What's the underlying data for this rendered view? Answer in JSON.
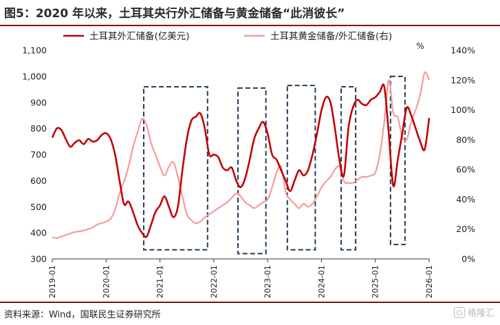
{
  "title": "图5：2020 年以来，土耳其央行外汇储备与黄金储备“此消彼长”",
  "source": "资料来源：Wind，国联民生证券研究所",
  "watermark": "格隆汇",
  "colors": {
    "fx_series": "#c00000",
    "gold_series": "#f59a9a",
    "box": "#1f3b57",
    "rule": "#7b1416"
  },
  "chart_data": {
    "type": "line",
    "legend": [
      "土耳其外汇储备(亿美元)",
      "土耳其黄金储备/外汇储备(右)"
    ],
    "legend_position": "top",
    "y_left": {
      "min": 300,
      "max": 1100,
      "step": 100,
      "ticks": [
        "300",
        "400",
        "500",
        "600",
        "700",
        "800",
        "900",
        "1,000",
        "1,100"
      ]
    },
    "y_right": {
      "unit": "%",
      "min": 0,
      "max": 140,
      "step": 20,
      "ticks": [
        "0%",
        "20%",
        "40%",
        "60%",
        "80%",
        "100%",
        "120%",
        "140%"
      ]
    },
    "x_ticks": [
      "2019-01",
      "2020-01",
      "2021-01",
      "2022-01",
      "2023-01",
      "2024-01",
      "2025-01",
      "2026-01"
    ],
    "x_start": "2019-01",
    "series": [
      {
        "name": "土耳其外汇储备(亿美元)",
        "axis": "left",
        "points": [
          [
            "2019-01",
            765
          ],
          [
            "2019-02",
            800
          ],
          [
            "2019-03",
            795
          ],
          [
            "2019-04",
            760
          ],
          [
            "2019-05",
            730
          ],
          [
            "2019-06",
            745
          ],
          [
            "2019-07",
            755
          ],
          [
            "2019-08",
            740
          ],
          [
            "2019-09",
            760
          ],
          [
            "2019-10",
            750
          ],
          [
            "2019-11",
            755
          ],
          [
            "2019-12",
            775
          ],
          [
            "2020-01",
            782
          ],
          [
            "2020-02",
            760
          ],
          [
            "2020-03",
            700
          ],
          [
            "2020-04",
            600
          ],
          [
            "2020-05",
            510
          ],
          [
            "2020-06",
            520
          ],
          [
            "2020-07",
            480
          ],
          [
            "2020-08",
            430
          ],
          [
            "2020-09",
            400
          ],
          [
            "2020-10",
            385
          ],
          [
            "2020-11",
            430
          ],
          [
            "2020-12",
            480
          ],
          [
            "2021-01",
            505
          ],
          [
            "2021-02",
            540
          ],
          [
            "2021-03",
            500
          ],
          [
            "2021-04",
            460
          ],
          [
            "2021-05",
            500
          ],
          [
            "2021-06",
            640
          ],
          [
            "2021-07",
            760
          ],
          [
            "2021-08",
            830
          ],
          [
            "2021-09",
            845
          ],
          [
            "2021-10",
            858
          ],
          [
            "2021-11",
            800
          ],
          [
            "2021-12",
            700
          ],
          [
            "2022-01",
            700
          ],
          [
            "2022-02",
            690
          ],
          [
            "2022-03",
            650
          ],
          [
            "2022-04",
            640
          ],
          [
            "2022-05",
            650
          ],
          [
            "2022-06",
            600
          ],
          [
            "2022-07",
            575
          ],
          [
            "2022-08",
            610
          ],
          [
            "2022-09",
            680
          ],
          [
            "2022-10",
            760
          ],
          [
            "2022-11",
            800
          ],
          [
            "2022-12",
            825
          ],
          [
            "2023-01",
            780
          ],
          [
            "2023-02",
            700
          ],
          [
            "2023-03",
            680
          ],
          [
            "2023-04",
            640
          ],
          [
            "2023-05",
            600
          ],
          [
            "2023-06",
            560
          ],
          [
            "2023-07",
            600
          ],
          [
            "2023-08",
            640
          ],
          [
            "2023-09",
            620
          ],
          [
            "2023-10",
            640
          ],
          [
            "2023-11",
            700
          ],
          [
            "2023-12",
            780
          ],
          [
            "2024-01",
            870
          ],
          [
            "2024-02",
            920
          ],
          [
            "2024-03",
            900
          ],
          [
            "2024-04",
            800
          ],
          [
            "2024-05",
            680
          ],
          [
            "2024-06",
            620
          ],
          [
            "2024-07",
            800
          ],
          [
            "2024-08",
            880
          ],
          [
            "2024-09",
            910
          ],
          [
            "2024-10",
            895
          ],
          [
            "2024-11",
            890
          ],
          [
            "2024-12",
            910
          ],
          [
            "2025-01",
            920
          ],
          [
            "2025-02",
            940
          ],
          [
            "2025-03",
            960
          ],
          [
            "2025-04",
            780
          ],
          [
            "2025-05",
            580
          ],
          [
            "2025-06",
            680
          ],
          [
            "2025-07",
            780
          ],
          [
            "2025-08",
            880
          ],
          [
            "2025-09",
            850
          ],
          [
            "2025-10",
            800
          ],
          [
            "2025-11",
            750
          ],
          [
            "2025-12",
            720
          ],
          [
            "2026-01",
            840
          ]
        ]
      },
      {
        "name": "土耳其黄金储备/外汇储备(右)",
        "axis": "right",
        "points": [
          [
            "2019-01",
            14.5
          ],
          [
            "2019-02",
            14
          ],
          [
            "2019-03",
            15
          ],
          [
            "2019-04",
            16
          ],
          [
            "2019-05",
            17
          ],
          [
            "2019-06",
            18
          ],
          [
            "2019-07",
            18.5
          ],
          [
            "2019-08",
            19
          ],
          [
            "2019-09",
            20
          ],
          [
            "2019-10",
            21
          ],
          [
            "2019-11",
            23
          ],
          [
            "2019-12",
            24
          ],
          [
            "2020-01",
            25
          ],
          [
            "2020-02",
            27
          ],
          [
            "2020-03",
            33
          ],
          [
            "2020-04",
            44
          ],
          [
            "2020-05",
            52
          ],
          [
            "2020-06",
            62
          ],
          [
            "2020-07",
            75
          ],
          [
            "2020-08",
            85
          ],
          [
            "2020-09",
            94
          ],
          [
            "2020-10",
            90
          ],
          [
            "2020-11",
            78
          ],
          [
            "2020-12",
            70
          ],
          [
            "2021-01",
            62
          ],
          [
            "2021-02",
            56
          ],
          [
            "2021-03",
            62
          ],
          [
            "2021-04",
            65
          ],
          [
            "2021-05",
            55
          ],
          [
            "2021-06",
            42
          ],
          [
            "2021-07",
            30
          ],
          [
            "2021-08",
            26
          ],
          [
            "2021-09",
            24
          ],
          [
            "2021-10",
            25
          ],
          [
            "2021-11",
            28
          ],
          [
            "2021-12",
            30
          ],
          [
            "2022-01",
            32
          ],
          [
            "2022-02",
            34
          ],
          [
            "2022-03",
            36
          ],
          [
            "2022-04",
            38
          ],
          [
            "2022-05",
            41
          ],
          [
            "2022-06",
            44
          ],
          [
            "2022-07",
            42
          ],
          [
            "2022-08",
            38
          ],
          [
            "2022-09",
            36
          ],
          [
            "2022-10",
            34
          ],
          [
            "2022-11",
            36
          ],
          [
            "2022-12",
            38
          ],
          [
            "2023-01",
            40
          ],
          [
            "2023-02",
            48
          ],
          [
            "2023-03",
            58
          ],
          [
            "2023-04",
            62
          ],
          [
            "2023-05",
            45
          ],
          [
            "2023-06",
            40
          ],
          [
            "2023-07",
            37
          ],
          [
            "2023-08",
            34
          ],
          [
            "2023-09",
            37
          ],
          [
            "2023-10",
            35
          ],
          [
            "2023-11",
            37
          ],
          [
            "2023-12",
            42
          ],
          [
            "2024-01",
            48
          ],
          [
            "2024-02",
            52
          ],
          [
            "2024-03",
            55
          ],
          [
            "2024-04",
            60
          ],
          [
            "2024-05",
            62
          ],
          [
            "2024-06",
            52
          ],
          [
            "2024-07",
            51
          ],
          [
            "2024-08",
            51
          ],
          [
            "2024-09",
            53
          ],
          [
            "2024-10",
            55
          ],
          [
            "2024-11",
            55
          ],
          [
            "2024-12",
            56
          ],
          [
            "2025-01",
            58
          ],
          [
            "2025-02",
            70
          ],
          [
            "2025-03",
            92
          ],
          [
            "2025-04",
            120
          ],
          [
            "2025-05",
            98
          ],
          [
            "2025-06",
            95
          ],
          [
            "2025-07",
            82
          ],
          [
            "2025-08",
            80
          ],
          [
            "2025-09",
            92
          ],
          [
            "2025-10",
            100
          ],
          [
            "2025-11",
            110
          ],
          [
            "2025-12",
            125
          ],
          [
            "2026-01",
            120
          ]
        ]
      }
    ],
    "highlight_boxes": [
      {
        "from": "2020-10",
        "to": "2021-11",
        "y_left_range": [
          335,
          960
        ]
      },
      {
        "from": "2022-07",
        "to": "2022-12",
        "y_left_range": [
          320,
          955
        ]
      },
      {
        "from": "2023-06",
        "to": "2023-11",
        "y_left_range": [
          335,
          965
        ]
      },
      {
        "from": "2024-06",
        "to": "2024-08",
        "y_left_range": [
          335,
          960
        ]
      },
      {
        "from": "2025-05",
        "to": "2025-07",
        "y_left_range": [
          355,
          1000
        ]
      }
    ]
  }
}
